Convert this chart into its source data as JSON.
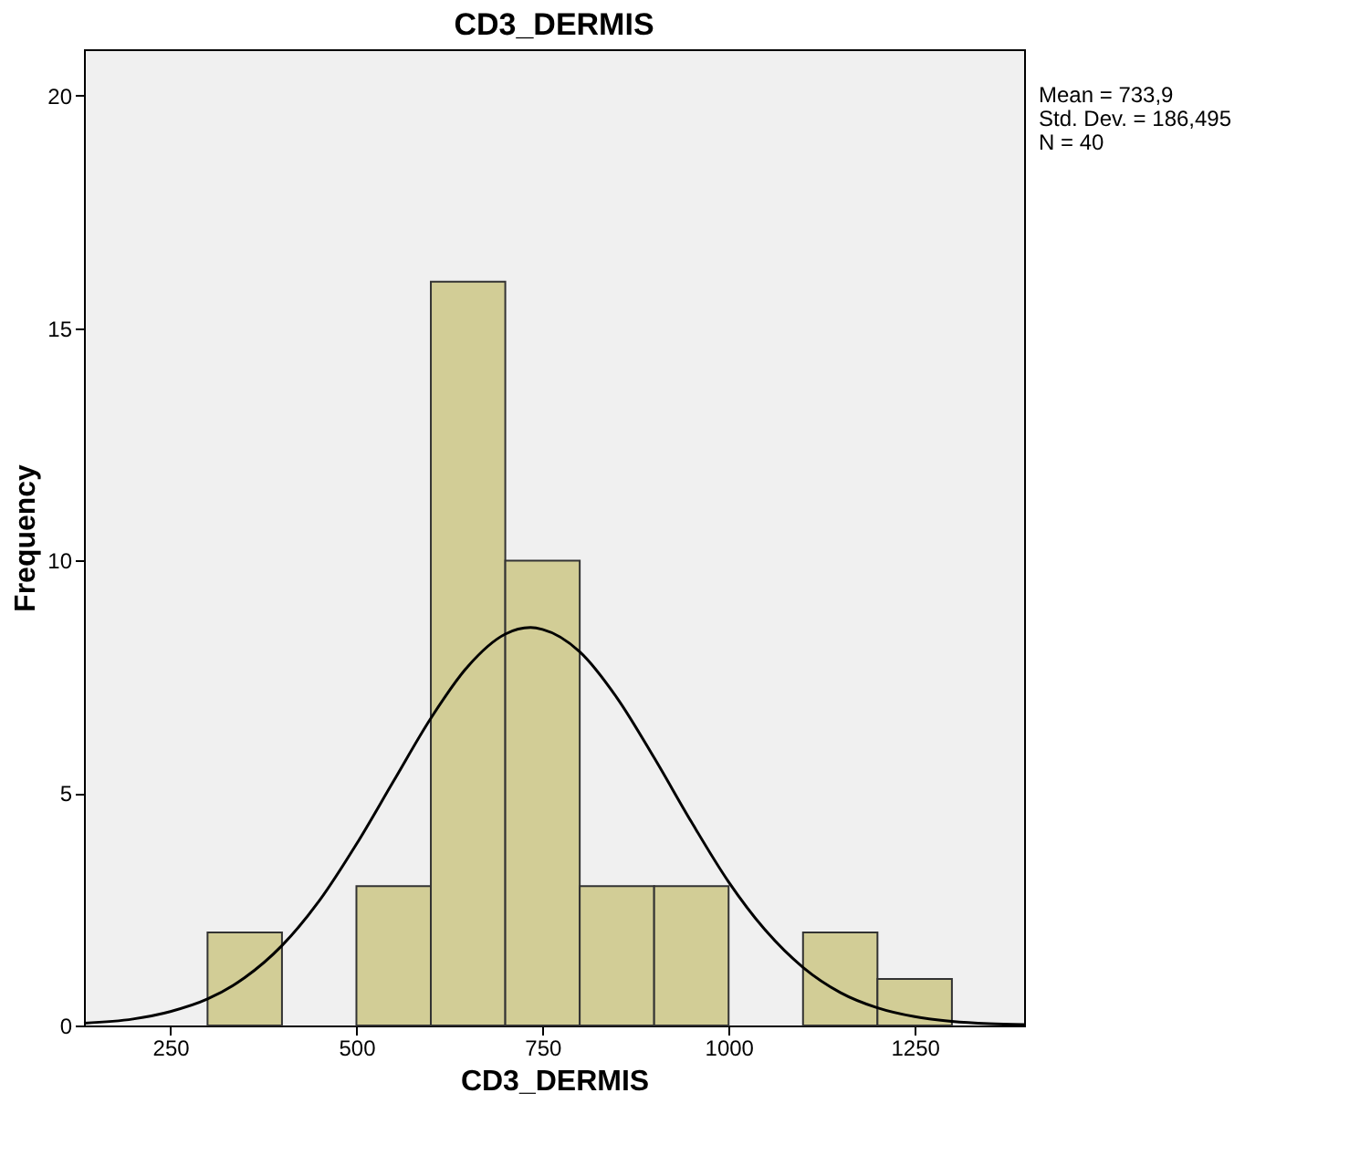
{
  "chart_data": {
    "type": "histogram",
    "title": "CD3_DERMIS",
    "xlabel": "CD3_DERMIS",
    "ylabel": "Frequency",
    "bins": [
      300,
      400,
      500,
      600,
      700,
      800,
      900,
      1000,
      1100,
      1200,
      1300
    ],
    "values": [
      2,
      0,
      3,
      16,
      10,
      3,
      3,
      0,
      2,
      1
    ],
    "color": "#d2cd96",
    "series": [
      {
        "type": "line",
        "color": "#000000",
        "x": [
          134,
          200,
          250,
          300,
          350,
          400,
          450,
          500,
          550,
          600,
          650,
          700,
          733.9,
          750,
          800,
          850,
          900,
          950,
          1000,
          1050,
          1100,
          1150,
          1200,
          1250,
          1300,
          1350,
          1397
        ],
        "values": [
          0.05,
          0.14,
          0.3,
          0.57,
          1.03,
          1.72,
          2.68,
          3.9,
          5.26,
          6.61,
          7.73,
          8.42,
          8.56,
          8.52,
          8.04,
          7.05,
          5.76,
          4.38,
          3.09,
          2.04,
          1.25,
          0.71,
          0.38,
          0.19,
          0.09,
          0.04,
          0.02
        ]
      }
    ],
    "xlim": [
      134,
      1397
    ],
    "xticks": [
      250,
      500,
      750,
      1000,
      1250
    ],
    "ylim": [
      0,
      21
    ],
    "yticks": [
      0,
      5,
      10,
      15,
      20
    ],
    "grid": false,
    "annotations": [
      "Mean = 733,9",
      "Std. Dev. = 186,495",
      "N = 40"
    ]
  }
}
